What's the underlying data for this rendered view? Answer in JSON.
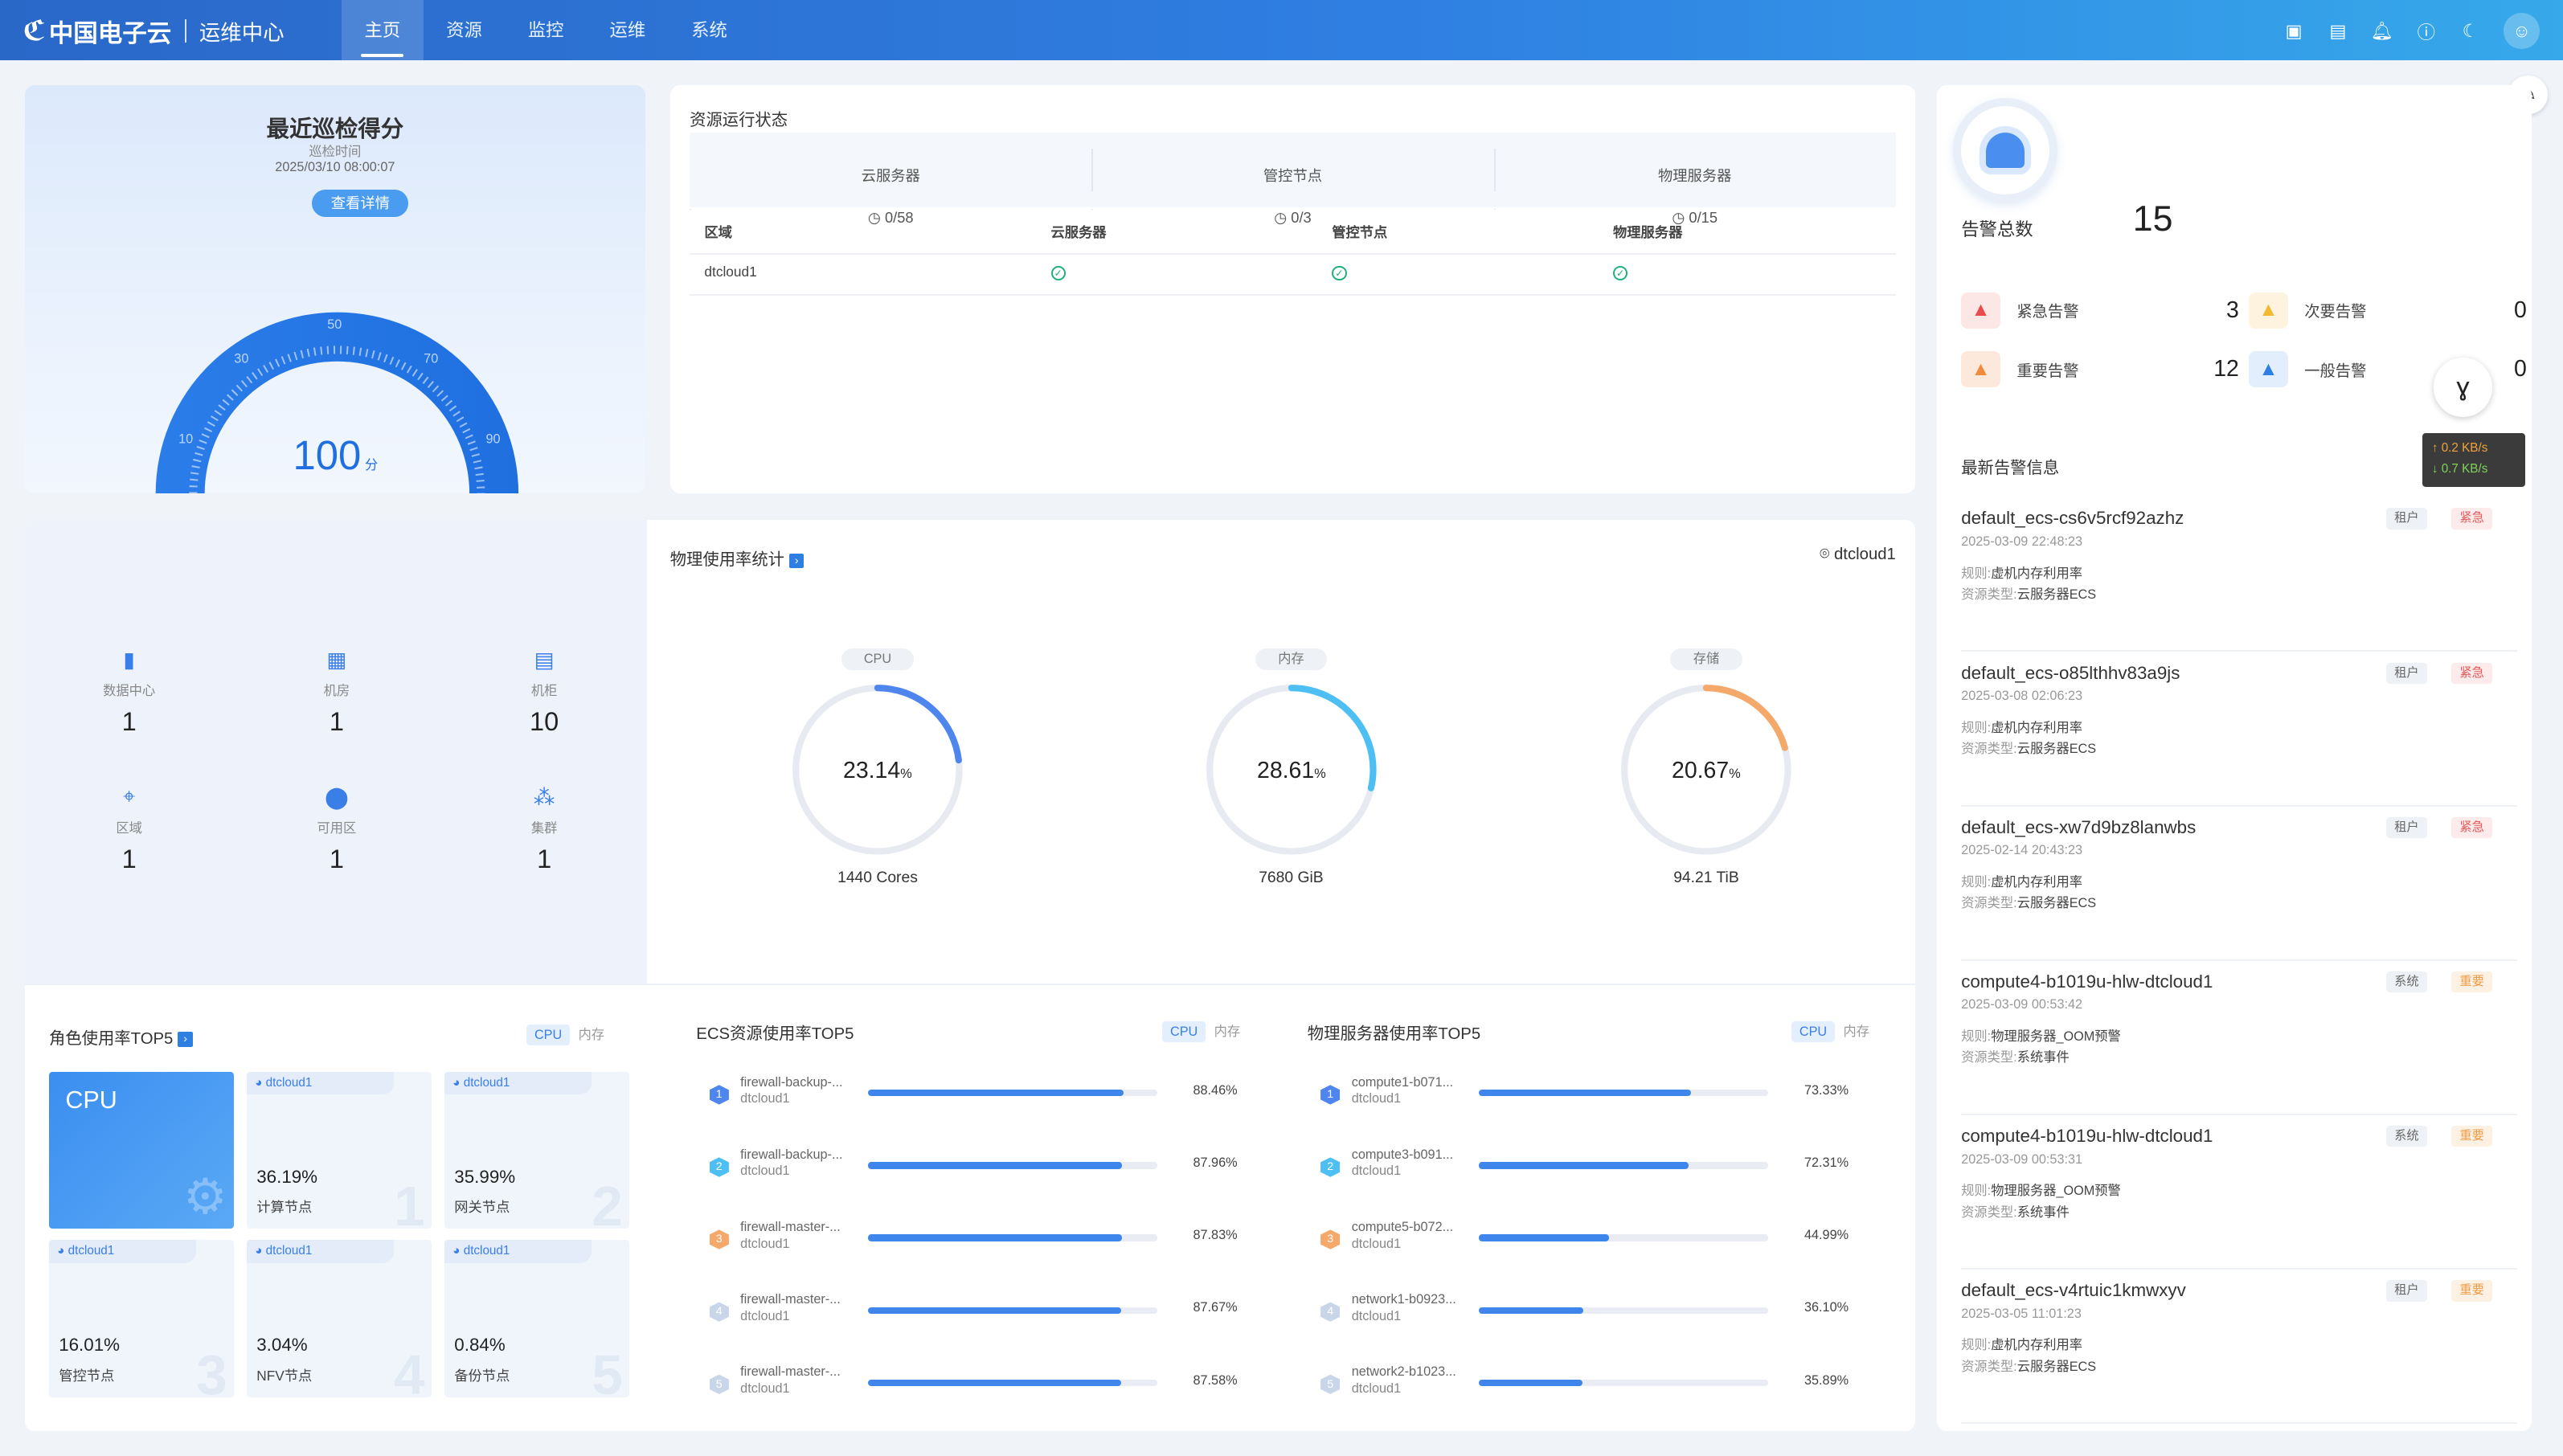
{
  "header": {
    "brand": "中国电子云",
    "sub": "运维中心",
    "tabs": [
      "主页",
      "资源",
      "监控",
      "运维",
      "系统"
    ]
  },
  "score": {
    "title": "最近巡检得分",
    "time_label": "巡检时间",
    "time": "2025/03/10 08:00:07",
    "button": "查看详情",
    "value": "100",
    "unit": "分",
    "ticks": [
      "10",
      "30",
      "50",
      "70",
      "90"
    ],
    "gauge_level": 1.0
  },
  "status": {
    "title": "资源运行状态",
    "summary": [
      {
        "label": "云服务器",
        "value": "0/58"
      },
      {
        "label": "管控节点",
        "value": "0/3"
      },
      {
        "label": "物理服务器",
        "value": "0/15"
      }
    ],
    "columns": [
      "区域",
      "云服务器",
      "管控节点",
      "物理服务器"
    ],
    "rows": [
      {
        "region": "dtcloud1"
      }
    ]
  },
  "infra": [
    {
      "label": "数据中心",
      "value": "1"
    },
    {
      "label": "机房",
      "value": "1"
    },
    {
      "label": "机柜",
      "value": "10"
    },
    {
      "label": "区域",
      "value": "1"
    },
    {
      "label": "可用区",
      "value": "1"
    },
    {
      "label": "集群",
      "value": "1"
    }
  ],
  "physical": {
    "title": "物理使用率统计",
    "location": "dtcloud1",
    "rings": [
      {
        "label": "CPU",
        "value": "23.14",
        "unit": "%",
        "cap": "1440 Cores",
        "pct": 23.14,
        "color": "#4f86ee"
      },
      {
        "label": "内存",
        "value": "28.61",
        "unit": "%",
        "cap": "7680 GiB",
        "pct": 28.61,
        "color": "#4dbff3"
      },
      {
        "label": "存储",
        "value": "20.67",
        "unit": "%",
        "cap": "94.21 TiB",
        "pct": 20.67,
        "color": "#f4a96b"
      }
    ]
  },
  "role": {
    "title": "角色使用率TOP5",
    "switch": [
      "CPU",
      "内存"
    ],
    "cpu_tile": "CPU",
    "tiles": [
      {
        "zone": "dtcloud1",
        "pct": "36.19%",
        "name": "计算节点",
        "idx": "1"
      },
      {
        "zone": "dtcloud1",
        "pct": "35.99%",
        "name": "网关节点",
        "idx": "2"
      },
      {
        "zone": "dtcloud1",
        "pct": "16.01%",
        "name": "管控节点",
        "idx": "3"
      },
      {
        "zone": "dtcloud1",
        "pct": "3.04%",
        "name": "NFV节点",
        "idx": "4"
      },
      {
        "zone": "dtcloud1",
        "pct": "0.84%",
        "name": "备份节点",
        "idx": "5"
      }
    ]
  },
  "ecs": {
    "title": "ECS资源使用率TOP5",
    "switch": [
      "CPU",
      "内存"
    ],
    "items": [
      {
        "n": "1",
        "name": "firewall-backup-...",
        "zone": "dtcloud1",
        "pct": "88.46%",
        "v": 88.46,
        "c": "#4f86ee"
      },
      {
        "n": "2",
        "name": "firewall-backup-...",
        "zone": "dtcloud1",
        "pct": "87.96%",
        "v": 87.96,
        "c": "#4dbff3"
      },
      {
        "n": "3",
        "name": "firewall-master-...",
        "zone": "dtcloud1",
        "pct": "87.83%",
        "v": 87.83,
        "c": "#f4a96b"
      },
      {
        "n": "4",
        "name": "firewall-master-...",
        "zone": "dtcloud1",
        "pct": "87.67%",
        "v": 87.67,
        "c": "#c9d6ea"
      },
      {
        "n": "5",
        "name": "firewall-master-...",
        "zone": "dtcloud1",
        "pct": "87.58%",
        "v": 87.58,
        "c": "#c9d6ea"
      }
    ]
  },
  "phys_top": {
    "title": "物理服务器使用率TOP5",
    "switch": [
      "CPU",
      "内存"
    ],
    "items": [
      {
        "n": "1",
        "name": "compute1-b071...",
        "zone": "dtcloud1",
        "pct": "73.33%",
        "v": 73.33,
        "c": "#4f86ee"
      },
      {
        "n": "2",
        "name": "compute3-b091...",
        "zone": "dtcloud1",
        "pct": "72.31%",
        "v": 72.31,
        "c": "#4dbff3"
      },
      {
        "n": "3",
        "name": "compute5-b072...",
        "zone": "dtcloud1",
        "pct": "44.99%",
        "v": 44.99,
        "c": "#f4a96b"
      },
      {
        "n": "4",
        "name": "network1-b0923...",
        "zone": "dtcloud1",
        "pct": "36.10%",
        "v": 36.1,
        "c": "#c9d6ea"
      },
      {
        "n": "5",
        "name": "network2-b1023...",
        "zone": "dtcloud1",
        "pct": "35.89%",
        "v": 35.89,
        "c": "#c9d6ea"
      }
    ]
  },
  "alarm": {
    "total_label": "告警总数",
    "total": "15",
    "levels": [
      {
        "label": "紧急告警",
        "value": "3",
        "color": "#e84c4c",
        "bg": "#fde6e6"
      },
      {
        "label": "次要告警",
        "value": "0",
        "color": "#f2b930",
        "bg": "#fdf3de"
      },
      {
        "label": "重要告警",
        "value": "12",
        "color": "#f08a3c",
        "bg": "#fde9dc"
      },
      {
        "label": "一般告警",
        "value": "0",
        "color": "#2f7fe2",
        "bg": "#e3eefc"
      }
    ],
    "latest_title": "最新告警信息",
    "rule_label": "规则:",
    "type_label": "资源类型:",
    "items": [
      {
        "name": "default_ecs-cs6v5rcf92azhz",
        "date": "2025-03-09 22:48:23",
        "rule": "虚机内存利用率",
        "type": "云服务器ECS",
        "tag1": "租户",
        "tag2": "紧急",
        "lvl": "red"
      },
      {
        "name": "default_ecs-o85lthhv83a9js",
        "date": "2025-03-08 02:06:23",
        "rule": "虚机内存利用率",
        "type": "云服务器ECS",
        "tag1": "租户",
        "tag2": "紧急",
        "lvl": "red"
      },
      {
        "name": "default_ecs-xw7d9bz8lanwbs",
        "date": "2025-02-14 20:43:23",
        "rule": "虚机内存利用率",
        "type": "云服务器ECS",
        "tag1": "租户",
        "tag2": "紧急",
        "lvl": "red"
      },
      {
        "name": "compute4-b1019u-hlw-dtcloud1",
        "date": "2025-03-09 00:53:42",
        "rule": "物理服务器_OOM预警",
        "type": "系统事件",
        "tag1": "系统",
        "tag2": "重要",
        "lvl": "org"
      },
      {
        "name": "compute4-b1019u-hlw-dtcloud1",
        "date": "2025-03-09 00:53:31",
        "rule": "物理服务器_OOM预警",
        "type": "系统事件",
        "tag1": "系统",
        "tag2": "重要",
        "lvl": "org"
      },
      {
        "name": "default_ecs-v4rtuic1kmwxyv",
        "date": "2025-03-05 11:01:23",
        "rule": "虚机内存利用率",
        "type": "云服务器ECS",
        "tag1": "租户",
        "tag2": "重要",
        "lvl": "org"
      }
    ]
  },
  "netspeed": {
    "up": "↑ 0.2 KB/s",
    "down": "↓ 0.7 KB/s"
  }
}
